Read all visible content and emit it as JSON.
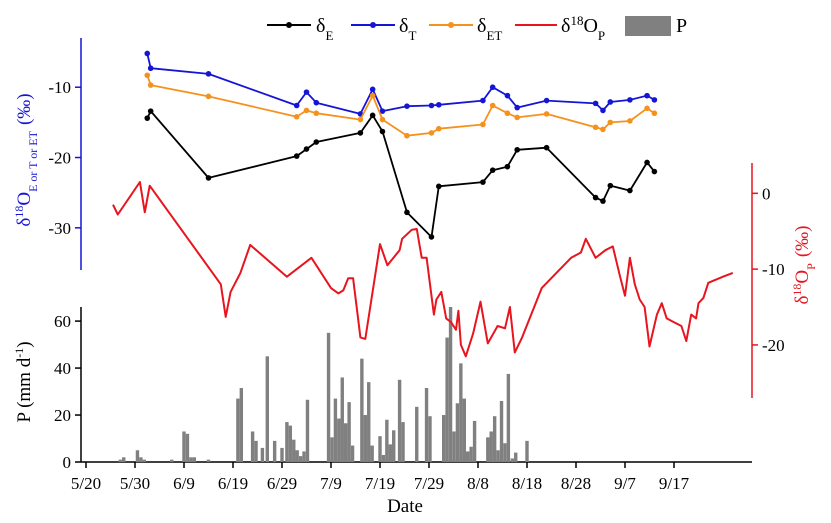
{
  "chart_data": {
    "type": "line",
    "x_axis": {
      "label": "Date",
      "ticks": [
        "5/20",
        "5/30",
        "6/9",
        "6/19",
        "6/29",
        "7/9",
        "7/19",
        "7/29",
        "8/8",
        "8/18",
        "8/28",
        "9/7",
        "9/17"
      ]
    },
    "left_axis": {
      "label_main": "δ",
      "label_sup": "18",
      "label_o": "O",
      "label_sub": "E or T or ET",
      "label_unit": "(‰)",
      "ticks": [
        "-10",
        "-20",
        "-30"
      ],
      "ylim": [
        -36,
        -3
      ],
      "color": "#1515d6"
    },
    "right_axis": {
      "label_main": "δ",
      "label_sup": "18",
      "label_o": "O",
      "label_sub": "P",
      "label_unit": "(‰)",
      "ticks": [
        "0",
        "-10",
        "-20"
      ],
      "ylim": [
        -27,
        4
      ],
      "color": "#e8141e"
    },
    "precip_axis": {
      "label": "P (mm d",
      "label_sup": "-1",
      "label_close": ")",
      "ticks": [
        "0",
        "20",
        "40",
        "60"
      ],
      "ylim": [
        0,
        66
      ]
    },
    "legend": {
      "dE_main": "δ",
      "dE_sub": "E",
      "dT_main": "δ",
      "dT_sub": "T",
      "dET_main": "δ",
      "dET_sub": "ET",
      "dP_main": "δ",
      "dP_sup": "18",
      "dP_o": "O",
      "dP_sub": "P",
      "precip": "P"
    },
    "series": [
      {
        "name": "δE",
        "key": "dE",
        "axis": "left",
        "color": "#000000",
        "points": [
          [
            32.5,
            -14.4
          ],
          [
            33.2,
            -13.4
          ],
          [
            45,
            -22.9
          ],
          [
            63,
            -19.8
          ],
          [
            65,
            -18.8
          ],
          [
            67,
            -17.8
          ],
          [
            76,
            -16.5
          ],
          [
            78.5,
            -14
          ],
          [
            80.5,
            -16.3
          ],
          [
            85.5,
            -27.8
          ],
          [
            90.5,
            -31.3
          ],
          [
            92,
            -24.1
          ],
          [
            101,
            -23.5
          ],
          [
            103,
            -21.8
          ],
          [
            106,
            -21.3
          ],
          [
            108,
            -18.9
          ],
          [
            114,
            -18.6
          ],
          [
            124,
            -25.7
          ],
          [
            125.5,
            -26.2
          ],
          [
            127,
            -24
          ],
          [
            131,
            -24.7
          ],
          [
            134.5,
            -20.7
          ],
          [
            136,
            -22
          ]
        ]
      },
      {
        "name": "δT",
        "key": "dT",
        "axis": "left",
        "color": "#1515d6",
        "points": [
          [
            32.5,
            -5.2
          ],
          [
            33.2,
            -7.3
          ],
          [
            45,
            -8.1
          ],
          [
            63,
            -12.6
          ],
          [
            65,
            -10.7
          ],
          [
            67,
            -12.2
          ],
          [
            76,
            -13.8
          ],
          [
            78.5,
            -10.3
          ],
          [
            80.5,
            -13.4
          ],
          [
            85.5,
            -12.7
          ],
          [
            90.5,
            -12.6
          ],
          [
            92,
            -12.5
          ],
          [
            101,
            -11.9
          ],
          [
            103,
            -10
          ],
          [
            106,
            -11.2
          ],
          [
            108,
            -12.9
          ],
          [
            114,
            -11.9
          ],
          [
            124,
            -12.3
          ],
          [
            125.5,
            -13.3
          ],
          [
            127,
            -12.1
          ],
          [
            131,
            -11.8
          ],
          [
            134.5,
            -11.2
          ],
          [
            136,
            -11.8
          ]
        ]
      },
      {
        "name": "δET",
        "key": "dET",
        "axis": "left",
        "color": "#f5921e",
        "points": [
          [
            32.5,
            -8.3
          ],
          [
            33.2,
            -9.7
          ],
          [
            45,
            -11.3
          ],
          [
            63,
            -14.2
          ],
          [
            65,
            -13.3
          ],
          [
            67,
            -13.7
          ],
          [
            76,
            -14.6
          ],
          [
            78.5,
            -11.2
          ],
          [
            80.5,
            -14.6
          ],
          [
            85.5,
            -16.9
          ],
          [
            90.5,
            -16.5
          ],
          [
            92,
            -15.9
          ],
          [
            101,
            -15.3
          ],
          [
            103,
            -12.6
          ],
          [
            106,
            -13.7
          ],
          [
            108,
            -14.3
          ],
          [
            114,
            -13.8
          ],
          [
            124,
            -15.7
          ],
          [
            125.5,
            -16
          ],
          [
            127,
            -15
          ],
          [
            131,
            -14.8
          ],
          [
            134.5,
            -13
          ],
          [
            136,
            -13.7
          ]
        ]
      },
      {
        "name": "δ18OP",
        "key": "dP",
        "axis": "right",
        "color": "#e8141e",
        "points": [
          [
            25.5,
            -1.5
          ],
          [
            26.5,
            -2.8
          ],
          [
            31,
            1.5
          ],
          [
            32,
            -2.5
          ],
          [
            33,
            1
          ],
          [
            47.5,
            -12
          ],
          [
            48.5,
            -16.3
          ],
          [
            49.5,
            -13
          ],
          [
            51.5,
            -10.5
          ],
          [
            53.5,
            -6.8
          ],
          [
            61,
            -11
          ],
          [
            66,
            -8.5
          ],
          [
            67,
            -9.5
          ],
          [
            70,
            -12.5
          ],
          [
            71.5,
            -13.2
          ],
          [
            72.5,
            -12.8
          ],
          [
            73.5,
            -11.2
          ],
          [
            74.5,
            -11.2
          ],
          [
            76,
            -19
          ],
          [
            77,
            -19.2
          ],
          [
            80,
            -6.7
          ],
          [
            81.5,
            -9.5
          ],
          [
            84,
            -7.5
          ],
          [
            84.5,
            -6
          ],
          [
            86.5,
            -4.8
          ],
          [
            87.5,
            -4.7
          ],
          [
            88.5,
            -8.5
          ],
          [
            89.5,
            -8.5
          ],
          [
            91,
            -16
          ],
          [
            91.5,
            -14
          ],
          [
            92.5,
            -13
          ],
          [
            93.5,
            -16.5
          ],
          [
            94.5,
            -17
          ],
          [
            95.5,
            -18
          ],
          [
            96,
            -15.5
          ],
          [
            96.5,
            -20
          ],
          [
            97.5,
            -21.5
          ],
          [
            99,
            -18.5
          ],
          [
            100.5,
            -14.3
          ],
          [
            102,
            -19.8
          ],
          [
            104,
            -17.5
          ],
          [
            105.5,
            -17.8
          ],
          [
            106.5,
            -15
          ],
          [
            107.5,
            -21
          ],
          [
            109,
            -19
          ],
          [
            113,
            -12.5
          ],
          [
            119,
            -8.5
          ],
          [
            121,
            -7.8
          ],
          [
            122,
            -6
          ],
          [
            124,
            -8.5
          ],
          [
            126,
            -7.5
          ],
          [
            127.5,
            -7
          ],
          [
            129,
            -11
          ],
          [
            130,
            -13.5
          ],
          [
            131,
            -8.5
          ],
          [
            132,
            -12
          ],
          [
            133,
            -14
          ],
          [
            134,
            -15
          ],
          [
            135,
            -20.2
          ],
          [
            136.5,
            -16
          ],
          [
            137.5,
            -14.5
          ],
          [
            138.5,
            -16.5
          ],
          [
            140,
            -17
          ],
          [
            141.5,
            -17.5
          ],
          [
            142.5,
            -19.5
          ],
          [
            143.5,
            -16
          ],
          [
            144.5,
            -16.5
          ],
          [
            145,
            -14.5
          ],
          [
            146,
            -13.8
          ],
          [
            147,
            -11.8
          ],
          [
            150,
            -11
          ],
          [
            152,
            -10.5
          ]
        ]
      }
    ],
    "precip": {
      "name": "P",
      "color": "#808080",
      "bars": [
        [
          27,
          1
        ],
        [
          27.7,
          2
        ],
        [
          30.5,
          5
        ],
        [
          31.2,
          2
        ],
        [
          31.9,
          1
        ],
        [
          37.5,
          1
        ],
        [
          40,
          13
        ],
        [
          40.7,
          12
        ],
        [
          41.4,
          2
        ],
        [
          42.1,
          2
        ],
        [
          45,
          1
        ],
        [
          51,
          27
        ],
        [
          51.7,
          31.5
        ],
        [
          54,
          13
        ],
        [
          54.7,
          9
        ],
        [
          56,
          6
        ],
        [
          57,
          45
        ],
        [
          58.5,
          9
        ],
        [
          60,
          6
        ],
        [
          61,
          17
        ],
        [
          61.7,
          15.5
        ],
        [
          62.4,
          9.5
        ],
        [
          63.1,
          5
        ],
        [
          63.8,
          2.5
        ],
        [
          64.5,
          4.5
        ],
        [
          65.2,
          26.5
        ],
        [
          69.5,
          55
        ],
        [
          70.2,
          10.5
        ],
        [
          70.9,
          27
        ],
        [
          71.6,
          18.5
        ],
        [
          72.3,
          36
        ],
        [
          73,
          16.5
        ],
        [
          73.7,
          25.5
        ],
        [
          74.4,
          7
        ],
        [
          76.3,
          44
        ],
        [
          77,
          20
        ],
        [
          77.7,
          34
        ],
        [
          78.4,
          7
        ],
        [
          80,
          11
        ],
        [
          80.7,
          3
        ],
        [
          81.4,
          18
        ],
        [
          82.1,
          7.5
        ],
        [
          82.8,
          13.5
        ],
        [
          84,
          35
        ],
        [
          84.7,
          17
        ],
        [
          87.5,
          23.5
        ],
        [
          89.5,
          31.5
        ],
        [
          90.2,
          19.5
        ],
        [
          93,
          20
        ],
        [
          93.7,
          53
        ],
        [
          94.4,
          66
        ],
        [
          95.1,
          13
        ],
        [
          95.8,
          25
        ],
        [
          96.5,
          42
        ],
        [
          97.2,
          27
        ],
        [
          97.9,
          4.5
        ],
        [
          98.6,
          6.5
        ],
        [
          99.3,
          17.5
        ],
        [
          102,
          10.5
        ],
        [
          102.7,
          13
        ],
        [
          103.4,
          19.5
        ],
        [
          104.1,
          5
        ],
        [
          104.8,
          26
        ],
        [
          105.5,
          8
        ],
        [
          106.2,
          37.5
        ],
        [
          107,
          1.5
        ],
        [
          107.7,
          4
        ],
        [
          110,
          9
        ]
      ]
    }
  }
}
